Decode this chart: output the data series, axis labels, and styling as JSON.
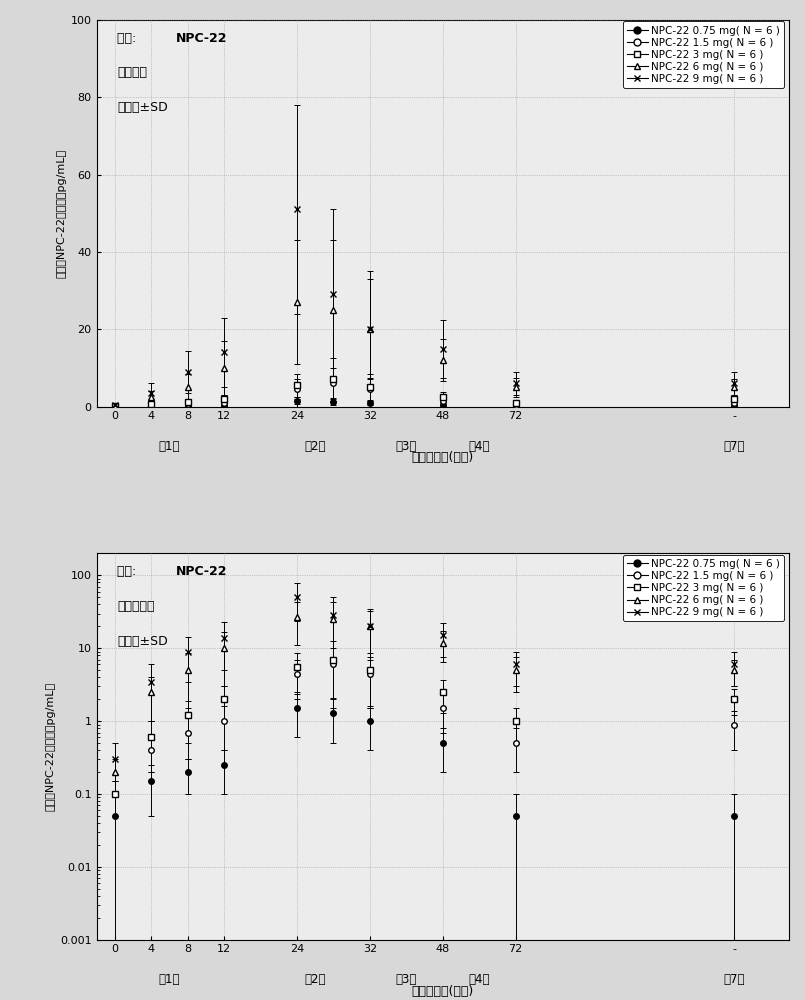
{
  "time_points_display": [
    0,
    1,
    2,
    3,
    5,
    6,
    7,
    9,
    11,
    17
  ],
  "time_labels": [
    "0",
    "4",
    "8",
    "12",
    "24",
    "32",
    "48",
    "72",
    "-"
  ],
  "time_tick_display": [
    0,
    1,
    2,
    3,
    5,
    7,
    9,
    11,
    17
  ],
  "xlabel": "给药后时间(小时)",
  "ylabel_linear": "血浆中NPC-22的浓度（pg/mL）",
  "ylabel_log": "血浆中NPC-22的浓度（pg/mL）",
  "legend_labels": [
    "NPC-22 0.75 mg( N = 6 )",
    "NPC-22 1.5 mg( N = 6 )",
    "NPC-22 3 mg( N = 6 )",
    "NPC-22 6 mg( N = 6 )",
    "NPC-22 9 mg( N = 6 )"
  ],
  "series": [
    {
      "marker": "o",
      "fillstyle": "full",
      "mean": [
        0.05,
        0.15,
        0.2,
        0.25,
        1.5,
        1.3,
        1.0,
        0.5,
        0.05,
        0.05
      ],
      "sd": [
        0.05,
        0.1,
        0.1,
        0.15,
        0.9,
        0.8,
        0.6,
        0.3,
        0.05,
        0.05
      ]
    },
    {
      "marker": "o",
      "fillstyle": "none",
      "mean": [
        0.1,
        0.4,
        0.7,
        1.0,
        4.5,
        6.0,
        4.5,
        1.5,
        0.5,
        0.9
      ],
      "sd": [
        0.05,
        0.2,
        0.4,
        0.6,
        2.5,
        4.0,
        3.0,
        0.8,
        0.3,
        0.5
      ]
    },
    {
      "marker": "s",
      "fillstyle": "none",
      "mean": [
        0.1,
        0.6,
        1.2,
        2.0,
        5.5,
        7.0,
        5.0,
        2.5,
        1.0,
        2.0
      ],
      "sd": [
        0.05,
        0.4,
        0.7,
        1.0,
        3.0,
        5.5,
        3.5,
        1.2,
        0.5,
        0.8
      ]
    },
    {
      "marker": "^",
      "fillstyle": "none",
      "mean": [
        0.2,
        2.5,
        5.0,
        10.0,
        27.0,
        25.0,
        20.0,
        12.0,
        5.0,
        5.0
      ],
      "sd": [
        0.1,
        1.5,
        3.5,
        7.0,
        16.0,
        18.0,
        13.0,
        5.5,
        2.5,
        2.0
      ]
    },
    {
      "marker": "x",
      "fillstyle": "full",
      "mean": [
        0.3,
        3.5,
        9.0,
        14.0,
        51.0,
        29.0,
        20.0,
        15.0,
        6.0,
        6.0
      ],
      "sd": [
        0.2,
        2.5,
        5.5,
        9.0,
        27.0,
        22.0,
        15.0,
        7.5,
        3.0,
        3.0
      ]
    }
  ],
  "linear_ylim": [
    0,
    100
  ],
  "linear_yticks": [
    0,
    20,
    40,
    60,
    80,
    100
  ],
  "log_ylim_low": 0.001,
  "log_ylim_high": 200,
  "log_yticks": [
    0.001,
    0.01,
    0.1,
    1,
    10,
    100
  ],
  "bg_color": "#d8d8d8",
  "plot_bg": "#ececec",
  "day_display_x": [
    1.5,
    5.5,
    8.0,
    10.0,
    17.0
  ],
  "day_labels": [
    "第1天",
    "第2天",
    "第3天",
    "第4天",
    "第7天"
  ]
}
